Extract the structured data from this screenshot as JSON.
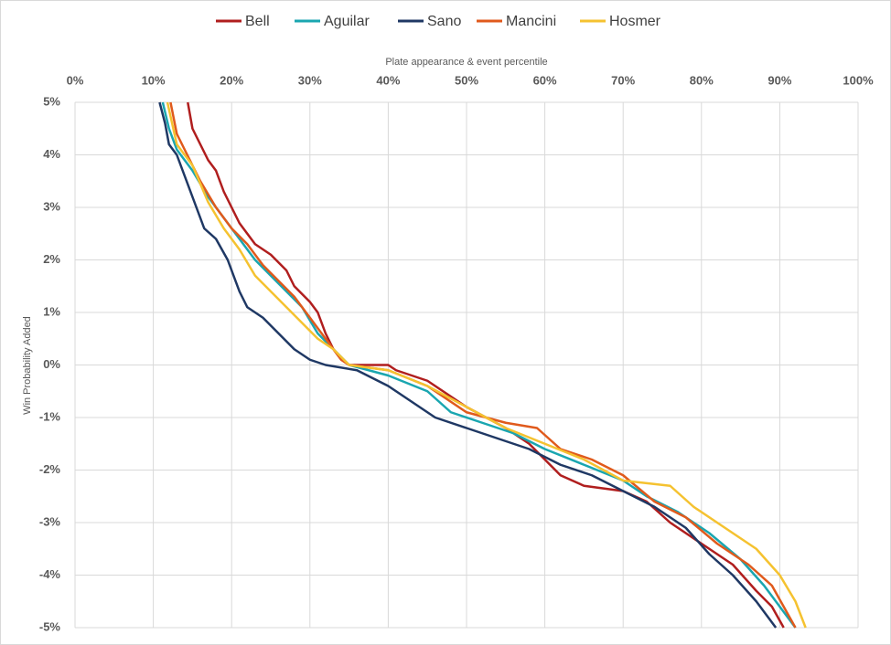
{
  "chart_data": {
    "type": "line",
    "x_label": "Plate appearance & event percentile",
    "y_label": "Win Probability Added",
    "xlim": [
      0,
      100
    ],
    "ylim": [
      -5,
      5
    ],
    "grid": true,
    "legend": "top",
    "xticks": [
      {
        "value": 0,
        "label": "0%"
      },
      {
        "value": 10,
        "label": "10%"
      },
      {
        "value": 20,
        "label": "20%"
      },
      {
        "value": 30,
        "label": "30%"
      },
      {
        "value": 40,
        "label": "40%"
      },
      {
        "value": 50,
        "label": "50%"
      },
      {
        "value": 60,
        "label": "60%"
      },
      {
        "value": 70,
        "label": "70%"
      },
      {
        "value": 80,
        "label": "80%"
      },
      {
        "value": 90,
        "label": "90%"
      },
      {
        "value": 100,
        "label": "100%"
      }
    ],
    "yticks": [
      {
        "value": 5,
        "label": "5%"
      },
      {
        "value": 4,
        "label": "4%"
      },
      {
        "value": 3,
        "label": "3%"
      },
      {
        "value": 2,
        "label": "2%"
      },
      {
        "value": 1,
        "label": "1%"
      },
      {
        "value": 0,
        "label": "0%"
      },
      {
        "value": -1,
        "label": "-1%"
      },
      {
        "value": -2,
        "label": "-2%"
      },
      {
        "value": -3,
        "label": "-3%"
      },
      {
        "value": -4,
        "label": "-4%"
      },
      {
        "value": -5,
        "label": "-5%"
      }
    ],
    "series": [
      {
        "name": "Bell",
        "color": "#b01e1e",
        "x": [
          14.4,
          15,
          16,
          17,
          18,
          19,
          20,
          21,
          22,
          23,
          25,
          27,
          28,
          30,
          31,
          32,
          33,
          34,
          35,
          40,
          41,
          45,
          50,
          55,
          58,
          60,
          62,
          65,
          70,
          73,
          76,
          80,
          84,
          87,
          89,
          90.5
        ],
        "values": [
          5,
          4.5,
          4.2,
          3.9,
          3.7,
          3.3,
          3.0,
          2.7,
          2.5,
          2.3,
          2.1,
          1.8,
          1.5,
          1.2,
          1.0,
          0.6,
          0.3,
          0.1,
          0,
          0,
          -0.1,
          -0.3,
          -0.8,
          -1.2,
          -1.5,
          -1.8,
          -2.1,
          -2.3,
          -2.4,
          -2.6,
          -3.0,
          -3.4,
          -3.8,
          -4.3,
          -4.6,
          -5
        ]
      },
      {
        "name": "Aguilar",
        "color": "#1aa6b0",
        "x": [
          11.2,
          12,
          13,
          15,
          17,
          19,
          21,
          23,
          25,
          27,
          29,
          31,
          33,
          35,
          40,
          45,
          48,
          52,
          56,
          60,
          65,
          70,
          73,
          77,
          81,
          85,
          88,
          90,
          92
        ],
        "values": [
          5,
          4.5,
          4.1,
          3.7,
          3.2,
          2.8,
          2.4,
          2.0,
          1.7,
          1.4,
          1.1,
          0.6,
          0.3,
          0,
          -0.2,
          -0.5,
          -0.9,
          -1.1,
          -1.3,
          -1.6,
          -1.9,
          -2.2,
          -2.5,
          -2.8,
          -3.2,
          -3.7,
          -4.2,
          -4.6,
          -5
        ]
      },
      {
        "name": "Sano",
        "color": "#1f3864",
        "x": [
          10.8,
          11.5,
          12,
          13,
          14,
          15.5,
          16.5,
          18,
          19.5,
          21,
          22,
          24,
          26,
          28,
          30,
          32,
          36,
          40,
          43,
          46,
          50,
          54,
          58,
          62,
          66,
          70,
          74,
          78,
          81,
          84,
          87,
          89.5
        ],
        "values": [
          5,
          4.6,
          4.2,
          4.0,
          3.6,
          3.0,
          2.6,
          2.4,
          2.0,
          1.4,
          1.1,
          0.9,
          0.6,
          0.3,
          0.1,
          0,
          -0.1,
          -0.4,
          -0.7,
          -1.0,
          -1.2,
          -1.4,
          -1.6,
          -1.9,
          -2.1,
          -2.4,
          -2.7,
          -3.1,
          -3.6,
          -4.0,
          -4.5,
          -5
        ]
      },
      {
        "name": "Mancini",
        "color": "#e05a1c",
        "x": [
          12.2,
          13,
          14,
          16,
          18,
          20,
          22,
          24,
          26,
          28,
          30,
          32,
          34,
          35,
          40,
          45,
          50,
          55,
          59,
          62,
          66,
          70,
          74,
          78,
          82,
          86,
          89,
          92
        ],
        "values": [
          5,
          4.4,
          4.1,
          3.5,
          3.0,
          2.6,
          2.3,
          1.9,
          1.6,
          1.3,
          0.9,
          0.5,
          0.1,
          0,
          -0.1,
          -0.4,
          -0.9,
          -1.1,
          -1.2,
          -1.6,
          -1.8,
          -2.1,
          -2.6,
          -2.9,
          -3.4,
          -3.8,
          -4.2,
          -5
        ]
      },
      {
        "name": "Hosmer",
        "color": "#f5c230",
        "x": [
          11.8,
          13,
          15,
          17,
          19,
          21,
          23,
          25,
          27,
          29,
          31,
          33,
          35,
          40,
          45,
          50,
          55,
          60,
          65,
          70,
          76,
          79,
          83,
          87,
          90,
          92,
          93.3
        ],
        "values": [
          5,
          4.2,
          3.8,
          3.1,
          2.6,
          2.2,
          1.7,
          1.4,
          1.1,
          0.8,
          0.5,
          0.3,
          0,
          -0.1,
          -0.4,
          -0.8,
          -1.2,
          -1.5,
          -1.8,
          -2.2,
          -2.3,
          -2.7,
          -3.1,
          -3.5,
          -4.0,
          -4.5,
          -5
        ]
      }
    ]
  }
}
